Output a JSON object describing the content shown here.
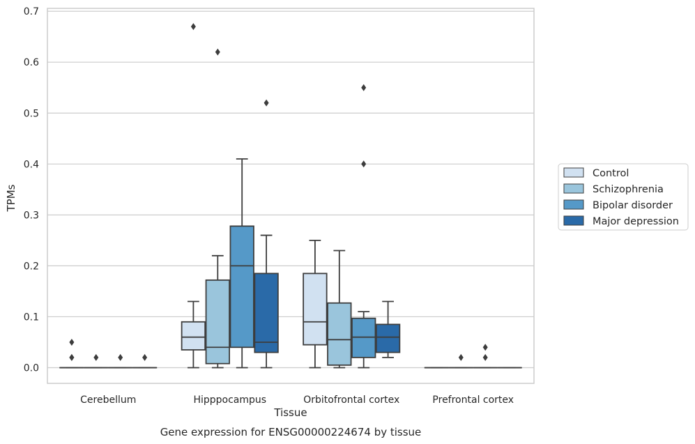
{
  "chart_data": {
    "type": "box",
    "title": "",
    "caption": "Gene expression for ENSG00000224674 by tissue",
    "xlabel": "Tissue",
    "ylabel": "TPMs",
    "ylim": [
      -0.032,
      0.705
    ],
    "yticks": [
      0.0,
      0.1,
      0.2,
      0.3,
      0.4,
      0.5,
      0.6,
      0.7
    ],
    "grid": "horizontal",
    "legend_position": "right-center",
    "categories": [
      "Cerebellum",
      "Hipppocampus",
      "Orbitofrontal cortex",
      "Prefrontal cortex"
    ],
    "series": [
      {
        "name": "Control",
        "color": "#d1e1f1",
        "boxes": [
          {
            "q1": 0.0,
            "median": 0.0,
            "q3": 0.0,
            "whisker_low": 0.0,
            "whisker_high": 0.0,
            "outliers": [
              0.05,
              0.02,
              0.02
            ]
          },
          {
            "q1": 0.035,
            "median": 0.06,
            "q3": 0.09,
            "whisker_low": 0.0,
            "whisker_high": 0.13,
            "outliers": [
              0.67
            ]
          },
          {
            "q1": 0.045,
            "median": 0.09,
            "q3": 0.185,
            "whisker_low": 0.0,
            "whisker_high": 0.25,
            "outliers": []
          },
          {
            "q1": 0.0,
            "median": 0.0,
            "q3": 0.0,
            "whisker_low": 0.0,
            "whisker_high": 0.0,
            "outliers": []
          }
        ]
      },
      {
        "name": "Schizophrenia",
        "color": "#9ac5dc",
        "boxes": [
          {
            "q1": 0.0,
            "median": 0.0,
            "q3": 0.0,
            "whisker_low": 0.0,
            "whisker_high": 0.0,
            "outliers": [
              0.02
            ]
          },
          {
            "q1": 0.008,
            "median": 0.04,
            "q3": 0.172,
            "whisker_low": 0.0,
            "whisker_high": 0.22,
            "outliers": [
              0.62
            ]
          },
          {
            "q1": 0.005,
            "median": 0.055,
            "q3": 0.127,
            "whisker_low": 0.0,
            "whisker_high": 0.23,
            "outliers": []
          },
          {
            "q1": 0.0,
            "median": 0.0,
            "q3": 0.0,
            "whisker_low": 0.0,
            "whisker_high": 0.0,
            "outliers": [
              0.02
            ]
          }
        ]
      },
      {
        "name": "Bipolar disorder",
        "color": "#5599c8",
        "boxes": [
          {
            "q1": 0.0,
            "median": 0.0,
            "q3": 0.0,
            "whisker_low": 0.0,
            "whisker_high": 0.0,
            "outliers": [
              0.02
            ]
          },
          {
            "q1": 0.04,
            "median": 0.2,
            "q3": 0.278,
            "whisker_low": 0.0,
            "whisker_high": 0.41,
            "outliers": []
          },
          {
            "q1": 0.02,
            "median": 0.06,
            "q3": 0.097,
            "whisker_low": 0.0,
            "whisker_high": 0.11,
            "outliers": [
              0.55,
              0.4
            ]
          },
          {
            "q1": 0.0,
            "median": 0.0,
            "q3": 0.0,
            "whisker_low": 0.0,
            "whisker_high": 0.0,
            "outliers": [
              0.04,
              0.02
            ]
          }
        ]
      },
      {
        "name": "Major depression",
        "color": "#2a6aa8",
        "boxes": [
          {
            "q1": 0.0,
            "median": 0.0,
            "q3": 0.0,
            "whisker_low": 0.0,
            "whisker_high": 0.0,
            "outliers": [
              0.02
            ]
          },
          {
            "q1": 0.03,
            "median": 0.05,
            "q3": 0.185,
            "whisker_low": 0.0,
            "whisker_high": 0.26,
            "outliers": [
              0.52
            ]
          },
          {
            "q1": 0.03,
            "median": 0.06,
            "q3": 0.085,
            "whisker_low": 0.02,
            "whisker_high": 0.13,
            "outliers": []
          },
          {
            "q1": 0.0,
            "median": 0.0,
            "q3": 0.0,
            "whisker_low": 0.0,
            "whisker_high": 0.0,
            "outliers": []
          }
        ]
      }
    ]
  }
}
